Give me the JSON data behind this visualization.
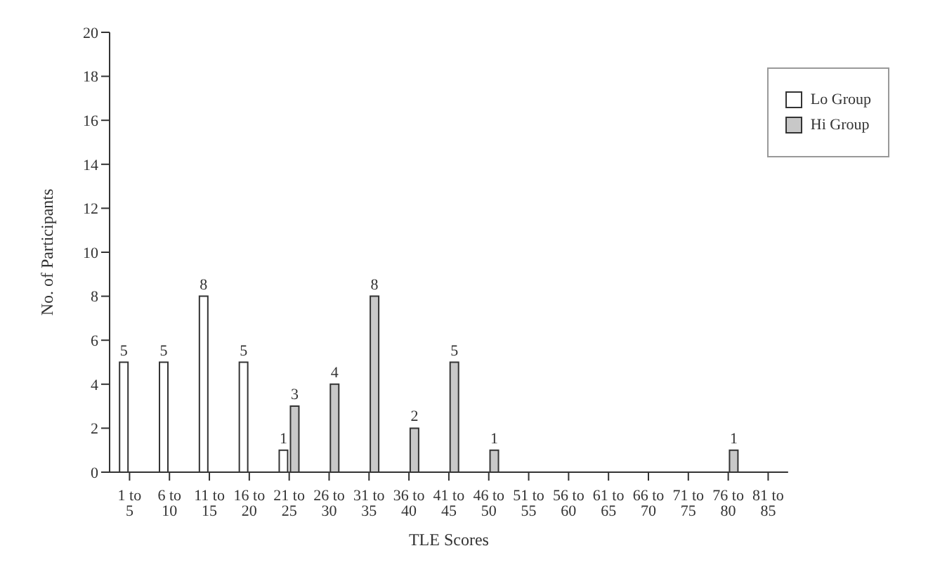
{
  "chart_data": {
    "type": "bar",
    "xlabel": "TLE Scores",
    "ylabel": "No. of Participants",
    "categories": [
      "1 to 5",
      "6 to 10",
      "11 to 15",
      "16 to 20",
      "21 to 25",
      "26 to 30",
      "31 to 35",
      "36 to 40",
      "41 to 45",
      "46 to 50",
      "51 to 55",
      "56 to 60",
      "61 to 65",
      "66 to 70",
      "71 to 75",
      "76 to 80",
      "81 to 85"
    ],
    "series": [
      {
        "name": "Lo Group",
        "color": "#ffffff",
        "values": [
          5,
          5,
          8,
          5,
          1,
          null,
          null,
          null,
          null,
          null,
          null,
          null,
          null,
          null,
          null,
          null,
          null
        ]
      },
      {
        "name": "Hi Group",
        "color": "#c8c8c8",
        "values": [
          null,
          null,
          null,
          null,
          3,
          4,
          8,
          2,
          5,
          1,
          null,
          null,
          null,
          null,
          null,
          1,
          null
        ]
      }
    ],
    "ylim": [
      0,
      20
    ],
    "yticks": [
      0,
      2,
      4,
      6,
      8,
      10,
      12,
      14,
      16,
      18,
      20
    ],
    "data_labels": true,
    "legend": "top right",
    "grid": false
  }
}
